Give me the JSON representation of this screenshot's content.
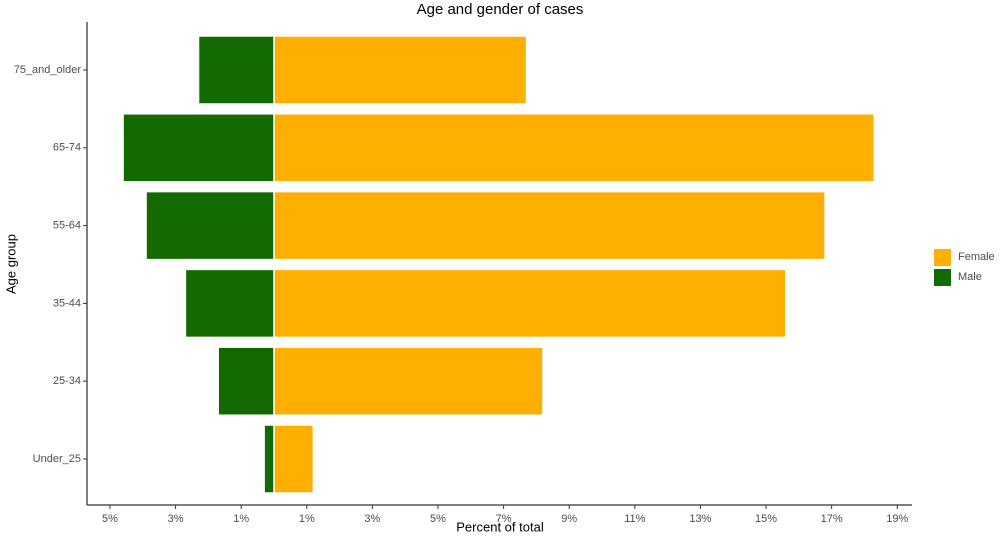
{
  "chart_data": {
    "type": "bar",
    "orientation": "horizontal",
    "stacked": true,
    "title": "Age and gender of cases",
    "x_label": "Percent of total",
    "y_label": "Age group",
    "categories": [
      "Under_25",
      "25-34",
      "35-44",
      "55-64",
      "65-74",
      "75_and_older"
    ],
    "series": [
      {
        "name": "Female",
        "color": "#ffaf00",
        "values": [
          1.2,
          8.2,
          15.6,
          16.8,
          18.3,
          7.7
        ]
      },
      {
        "name": "Male",
        "color": "#136a00",
        "values": [
          -0.3,
          -1.7,
          -2.7,
          -3.9,
          -4.6,
          -2.3
        ]
      }
    ],
    "xlim": [
      -5.7,
      19.45
    ],
    "xticks": [
      {
        "value": -5,
        "label": "5%"
      },
      {
        "value": -3,
        "label": "3%"
      },
      {
        "value": -1,
        "label": "1%"
      },
      {
        "value": 1,
        "label": "1%"
      },
      {
        "value": 3,
        "label": "3%"
      },
      {
        "value": 5,
        "label": "5%"
      },
      {
        "value": 7,
        "label": "7%"
      },
      {
        "value": 9,
        "label": "9%"
      },
      {
        "value": 11,
        "label": "11%"
      },
      {
        "value": 13,
        "label": "13%"
      },
      {
        "value": 15,
        "label": "15%"
      },
      {
        "value": 17,
        "label": "17%"
      },
      {
        "value": 19,
        "label": "19%"
      }
    ],
    "grid": false,
    "legend": "right"
  }
}
